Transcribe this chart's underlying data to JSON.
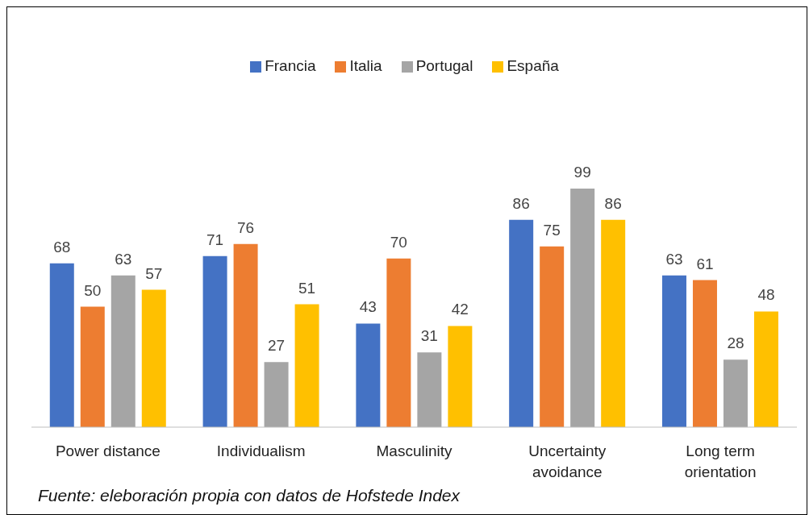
{
  "chart_data": {
    "type": "bar",
    "categories": [
      "Power distance",
      "Individualism",
      "Masculinity",
      "Uncertainty avoidance",
      "Long term orientation"
    ],
    "series": [
      {
        "name": "Francia",
        "color": "#4472c4",
        "values": [
          68,
          71,
          43,
          86,
          63
        ]
      },
      {
        "name": "Italia",
        "color": "#ed7d31",
        "values": [
          50,
          76,
          70,
          75,
          61
        ]
      },
      {
        "name": "Portugal",
        "color": "#a5a5a5",
        "values": [
          63,
          27,
          31,
          99,
          28
        ]
      },
      {
        "name": "España",
        "color": "#ffc000",
        "values": [
          57,
          51,
          42,
          86,
          48
        ]
      }
    ],
    "data_labels": true,
    "legend": "top",
    "grid": false,
    "annotations": [
      "Fuente: eleboración propia con datos de Hofstede Index"
    ]
  }
}
